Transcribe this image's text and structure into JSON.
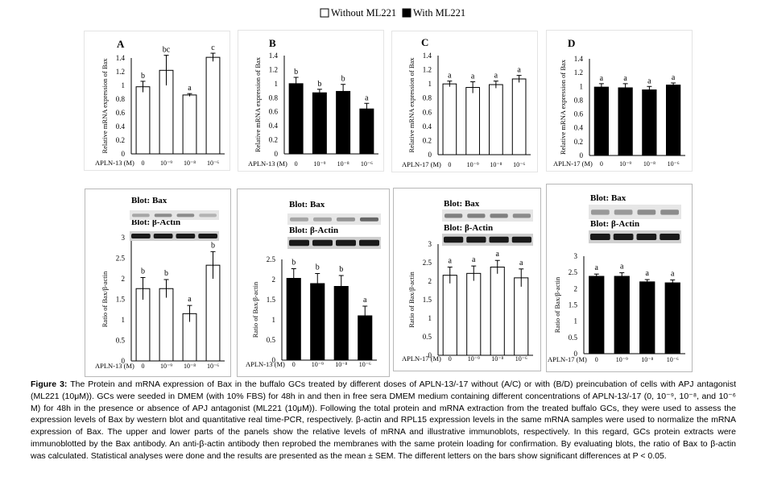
{
  "legend": {
    "without_label": "Without ML221",
    "with_label": "With ML221"
  },
  "blots": {
    "bax_label": "Blot: Bax",
    "actin_label": "Blot: β-Actin"
  },
  "caption": {
    "figure_label": "Figure 3:",
    "text": "The Protein and mRNA expression of Bax in the buffalo GCs treated by different doses of APLN-13/-17 without (A/C) or with (B/D) preincubation of cells with APJ antagonist (ML221 (10μM)). GCs were seeded in DMEM (with 10% FBS) for 48h in and then in free sera DMEM medium containing different concentrations of APLN-13/-17 (0, 10⁻⁹, 10⁻⁸, and 10⁻⁶ M) for 48h in the presence or absence of APJ antagonist (ML221 (10μM)). Following the total protein and mRNA extraction from the treated buffalo GCs, they were used to assess the expression levels of Bax by western blot and quantitative real time-PCR, respectively. β-actin and RPL15 expression levels in the same mRNA samples were used to normalize the mRNA expression of Bax. The upper and lower parts of the panels show the relative levels of mRNA and illustrative immunoblots, respectively. In this regard, GCs protein extracts were immunoblotted by the Bax antibody. An anti-β-actin antibody then reprobed the membranes with the same protein loading for confirmation. By evaluating blots, the ratio of Bax to β-actin was calculated. Statistical analyses were done and the results are presented as the mean ± SEM. The different letters on the bars show significant differences at P < 0.05."
  },
  "colors": {
    "without": "#ffffff",
    "with": "#000000",
    "axis": "#000000"
  },
  "chart_data": [
    {
      "type": "bar",
      "panel": "A",
      "xlabel_prefix": "APLN-13 (M)",
      "ylabel": "Relative mRNA expression of Bax",
      "categories": [
        "0",
        "10⁻⁹",
        "10⁻⁸",
        "10⁻⁶"
      ],
      "values": [
        0.98,
        1.22,
        0.86,
        1.41
      ],
      "errors": [
        0.08,
        0.22,
        0.02,
        0.06
      ],
      "letters": [
        "b",
        "bc",
        "a",
        "c"
      ],
      "ylim": [
        0,
        1.4
      ],
      "yticks": [
        "0",
        "0.2",
        "0.4",
        "0.6",
        "0.8",
        "1",
        "1.2",
        "1.4"
      ],
      "treatment": "without"
    },
    {
      "type": "bar",
      "panel": "B",
      "xlabel_prefix": "APLN-13 (M)",
      "ylabel": "Relative mRNA expression of Bax",
      "categories": [
        "0",
        "10⁻⁹",
        "10⁻⁸",
        "10⁻⁶"
      ],
      "values": [
        1.0,
        0.87,
        0.89,
        0.64
      ],
      "errors": [
        0.09,
        0.05,
        0.1,
        0.08
      ],
      "letters": [
        "b",
        "b",
        "b",
        "a"
      ],
      "ylim": [
        0,
        1.4
      ],
      "yticks": [
        "0",
        "0.2",
        "0.4",
        "0.6",
        "0.8",
        "1",
        "1.2",
        "1.4"
      ],
      "treatment": "with"
    },
    {
      "type": "bar",
      "panel": "C",
      "xlabel_prefix": "APLN-17 (M)",
      "ylabel": "Relative mRNA expression of Bax",
      "categories": [
        "0",
        "10⁻⁹",
        "10⁻⁸",
        "10⁻⁶"
      ],
      "values": [
        1.0,
        0.95,
        0.99,
        1.07
      ],
      "errors": [
        0.04,
        0.08,
        0.05,
        0.05
      ],
      "letters": [
        "a",
        "a",
        "a",
        "a"
      ],
      "ylim": [
        0,
        1.4
      ],
      "yticks": [
        "0",
        "0.2",
        "0.4",
        "0.6",
        "0.8",
        "1",
        "1.2",
        "1.4"
      ],
      "treatment": "without"
    },
    {
      "type": "bar",
      "panel": "D",
      "xlabel_prefix": "APLN-17 (M)",
      "ylabel": "Relative mRNA expression of Bax",
      "categories": [
        "0",
        "10⁻⁹",
        "10⁻⁸",
        "10⁻⁶"
      ],
      "values": [
        0.99,
        0.98,
        0.95,
        1.02
      ],
      "errors": [
        0.05,
        0.06,
        0.05,
        0.03
      ],
      "letters": [
        "a",
        "a",
        "a",
        "a"
      ],
      "ylim": [
        0,
        1.4
      ],
      "yticks": [
        "0",
        "0.2",
        "0.4",
        "0.6",
        "0.8",
        "1",
        "1.2",
        "1.4"
      ],
      "treatment": "with"
    },
    {
      "type": "bar",
      "xlabel_prefix": "APLN-13 (M)",
      "ylabel": "Ratio of Bax/β-actin",
      "categories": [
        "0",
        "10⁻⁹",
        "10⁻⁸",
        "10⁻⁶"
      ],
      "values": [
        1.76,
        1.76,
        1.15,
        2.33
      ],
      "errors": [
        0.27,
        0.22,
        0.2,
        0.33
      ],
      "letters": [
        "b",
        "b",
        "a",
        "b"
      ],
      "ylim": [
        0,
        3
      ],
      "yticks": [
        "0",
        "0.5",
        "1",
        "1.5",
        "2",
        "2.5",
        "3"
      ],
      "treatment": "without"
    },
    {
      "type": "bar",
      "xlabel_prefix": "APLN-13 (M)",
      "ylabel": "Ratio of Bax/β-actin",
      "categories": [
        "0",
        "10⁻⁹",
        "10⁻⁸",
        "10⁻⁶"
      ],
      "values": [
        2.03,
        1.9,
        1.83,
        1.1
      ],
      "errors": [
        0.24,
        0.25,
        0.27,
        0.24
      ],
      "letters": [
        "b",
        "b",
        "b",
        "a"
      ],
      "ylim": [
        0,
        2.5
      ],
      "yticks": [
        "0",
        "0.5",
        "1",
        "1.5",
        "2",
        "2.5"
      ],
      "treatment": "with"
    },
    {
      "type": "bar",
      "xlabel_prefix": "APLN-17 (M)",
      "ylabel": "Ratio of Bax/β-actin",
      "categories": [
        "0",
        "10⁻⁹",
        "10⁻⁸",
        "10⁻⁶"
      ],
      "values": [
        2.16,
        2.21,
        2.38,
        2.09
      ],
      "errors": [
        0.22,
        0.2,
        0.18,
        0.24
      ],
      "letters": [
        "a",
        "a",
        "a",
        "a"
      ],
      "ylim": [
        0,
        3
      ],
      "yticks": [
        "0",
        "0.5",
        "1",
        "1.5",
        "2",
        "2.5",
        "3"
      ],
      "treatment": "without"
    },
    {
      "type": "bar",
      "xlabel_prefix": "APLN-17 (M)",
      "ylabel": "Ratio of Bax/β-actin",
      "categories": [
        "0",
        "10⁻⁹",
        "10⁻⁸",
        "10⁻⁶"
      ],
      "values": [
        2.38,
        2.38,
        2.21,
        2.18
      ],
      "errors": [
        0.07,
        0.11,
        0.07,
        0.09
      ],
      "letters": [
        "a",
        "a",
        "a",
        "a"
      ],
      "ylim": [
        0,
        3
      ],
      "yticks": [
        "0",
        "0.5",
        "1",
        "1.5",
        "2",
        "2.5",
        "3"
      ],
      "treatment": "with"
    }
  ]
}
